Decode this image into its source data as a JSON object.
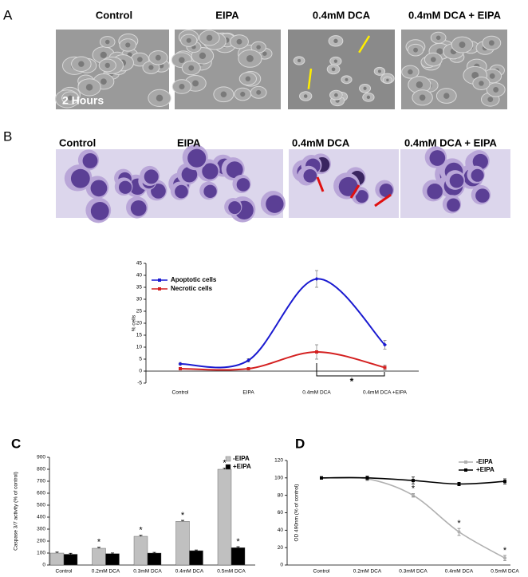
{
  "panels": {
    "A": {
      "label": "A",
      "captions": [
        "Control",
        "EIPA",
        "0.4mM DCA",
        "0.4mM DCA + EIPA"
      ],
      "overlay": "2 Hours"
    },
    "B": {
      "label": "B",
      "captions": [
        "Control",
        "EIPA",
        "0.4mM DCA",
        "0.4mM DCA + EIPA"
      ]
    },
    "C": {
      "label": "C"
    },
    "D": {
      "label": "D"
    }
  },
  "chart_data": [
    {
      "type": "line",
      "smooth": true,
      "categories": [
        "Control",
        "EIPA",
        "0.4mM DCA",
        "0.4mM DCA +EIPA"
      ],
      "ylabel": "% cells",
      "ylim": [
        -5,
        45
      ],
      "yticks": [
        -5,
        0,
        5,
        10,
        15,
        20,
        25,
        30,
        35,
        40,
        45
      ],
      "annotation": "*",
      "series": [
        {
          "name": "Apoptotic cells",
          "color": "#1a1ad0",
          "marker": "diamond",
          "values": [
            3,
            4.5,
            38.5,
            11
          ],
          "errors": [
            0.6,
            0.7,
            3.5,
            1.8
          ]
        },
        {
          "name": "Necrotic cells",
          "color": "#d42020",
          "marker": "square",
          "values": [
            1,
            1,
            8,
            1.5
          ],
          "errors": [
            0.4,
            0.4,
            3,
            1
          ]
        }
      ]
    },
    {
      "type": "bar",
      "categories": [
        "Control",
        "0.2mM DCA",
        "0.3mM DCA",
        "0.4mM DCA",
        "0.5mM DCA"
      ],
      "ylabel": "Caspase 3/7 activity (% of control)",
      "ylim": [
        0,
        900
      ],
      "yticks": [
        0,
        100,
        200,
        300,
        400,
        500,
        600,
        700,
        800,
        900
      ],
      "significance_marker": "*",
      "series": [
        {
          "name": "-EIPA",
          "color": "#c0c0c0",
          "values": [
            100,
            140,
            240,
            365,
            800
          ],
          "errors": [
            8,
            8,
            8,
            8,
            8
          ],
          "significant": [
            false,
            true,
            true,
            true,
            true
          ]
        },
        {
          "name": "+EIPA",
          "color": "#000000",
          "values": [
            90,
            95,
            100,
            120,
            145
          ],
          "errors": [
            8,
            6,
            6,
            6,
            8
          ],
          "significant": [
            false,
            false,
            false,
            false,
            true
          ]
        }
      ]
    },
    {
      "type": "line",
      "smooth": true,
      "categories": [
        "Control",
        "0.2mM DCA",
        "0.3mM DCA",
        "0.4mM DCA",
        "0.5mM DCA"
      ],
      "ylabel": "OD 490nm (% of control)",
      "ylim": [
        0,
        120
      ],
      "yticks": [
        0,
        20,
        40,
        60,
        80,
        100,
        120
      ],
      "significance_marker": "*",
      "series": [
        {
          "name": "-EIPA",
          "color": "#b0b0b0",
          "marker": "circle",
          "values": [
            100,
            99,
            80,
            38,
            8
          ],
          "errors": [
            1.5,
            2,
            2,
            4,
            3
          ],
          "significant": [
            false,
            false,
            true,
            true,
            true
          ]
        },
        {
          "name": "+EIPA",
          "color": "#000000",
          "marker": "square",
          "values": [
            100,
            100,
            97,
            93,
            96
          ],
          "errors": [
            1.5,
            2,
            4,
            2,
            3
          ],
          "significant": [
            false,
            false,
            false,
            false,
            false
          ]
        }
      ]
    }
  ]
}
